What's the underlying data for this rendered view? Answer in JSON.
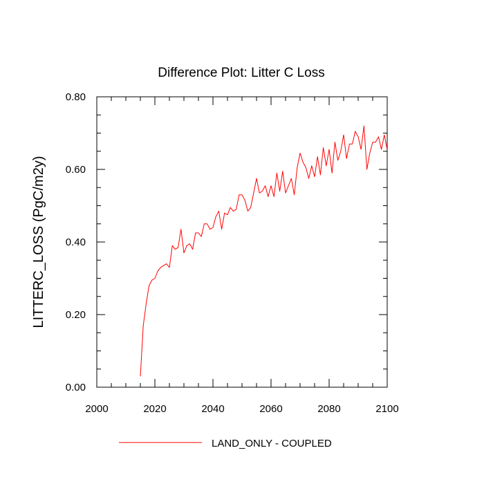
{
  "chart_data": {
    "type": "line",
    "title": "Difference Plot: Litter C Loss",
    "xlabel": "",
    "ylabel": "LITTERC_LOSS  (PgC/m2y)",
    "xlim": [
      2000,
      2100
    ],
    "ylim": [
      0.0,
      0.8
    ],
    "x_ticks": [
      2000,
      2020,
      2040,
      2060,
      2080,
      2100
    ],
    "x_tick_labels": [
      "2000",
      "2020",
      "2040",
      "2060",
      "2080",
      "2100"
    ],
    "y_ticks": [
      0.0,
      0.2,
      0.4,
      0.6,
      0.8
    ],
    "y_tick_labels": [
      "0.00",
      "0.20",
      "0.40",
      "0.60",
      "0.80"
    ],
    "x_minor_step": 5,
    "y_minor_step": 0.05,
    "grid": false,
    "legend_position": "bottom-center",
    "series": [
      {
        "name": "LAND_ONLY - COUPLED",
        "color": "#ff0000",
        "x": [
          2015,
          2016,
          2017,
          2018,
          2019,
          2020,
          2021,
          2022,
          2023,
          2024,
          2025,
          2026,
          2027,
          2028,
          2029,
          2030,
          2031,
          2032,
          2033,
          2034,
          2035,
          2036,
          2037,
          2038,
          2039,
          2040,
          2041,
          2042,
          2043,
          2044,
          2045,
          2046,
          2047,
          2048,
          2049,
          2050,
          2051,
          2052,
          2053,
          2054,
          2055,
          2056,
          2057,
          2058,
          2059,
          2060,
          2061,
          2062,
          2063,
          2064,
          2065,
          2066,
          2067,
          2068,
          2069,
          2070,
          2071,
          2072,
          2073,
          2074,
          2075,
          2076,
          2077,
          2078,
          2079,
          2080,
          2081,
          2082,
          2083,
          2084,
          2085,
          2086,
          2087,
          2088,
          2089,
          2090,
          2091,
          2092,
          2093,
          2094,
          2095,
          2096,
          2097,
          2098,
          2099,
          2100
        ],
        "values": [
          0.03,
          0.17,
          0.23,
          0.28,
          0.295,
          0.3,
          0.32,
          0.33,
          0.335,
          0.34,
          0.33,
          0.39,
          0.38,
          0.385,
          0.435,
          0.37,
          0.39,
          0.395,
          0.38,
          0.425,
          0.425,
          0.415,
          0.45,
          0.45,
          0.435,
          0.44,
          0.47,
          0.485,
          0.435,
          0.48,
          0.475,
          0.495,
          0.485,
          0.49,
          0.53,
          0.53,
          0.515,
          0.485,
          0.495,
          0.535,
          0.575,
          0.535,
          0.54,
          0.555,
          0.525,
          0.555,
          0.525,
          0.59,
          0.54,
          0.595,
          0.535,
          0.555,
          0.575,
          0.53,
          0.605,
          0.645,
          0.62,
          0.605,
          0.575,
          0.61,
          0.58,
          0.635,
          0.585,
          0.66,
          0.61,
          0.655,
          0.59,
          0.675,
          0.625,
          0.65,
          0.695,
          0.63,
          0.67,
          0.67,
          0.705,
          0.69,
          0.655,
          0.72,
          0.6,
          0.645,
          0.675,
          0.675,
          0.69,
          0.655,
          0.695,
          0.655
        ]
      }
    ]
  }
}
